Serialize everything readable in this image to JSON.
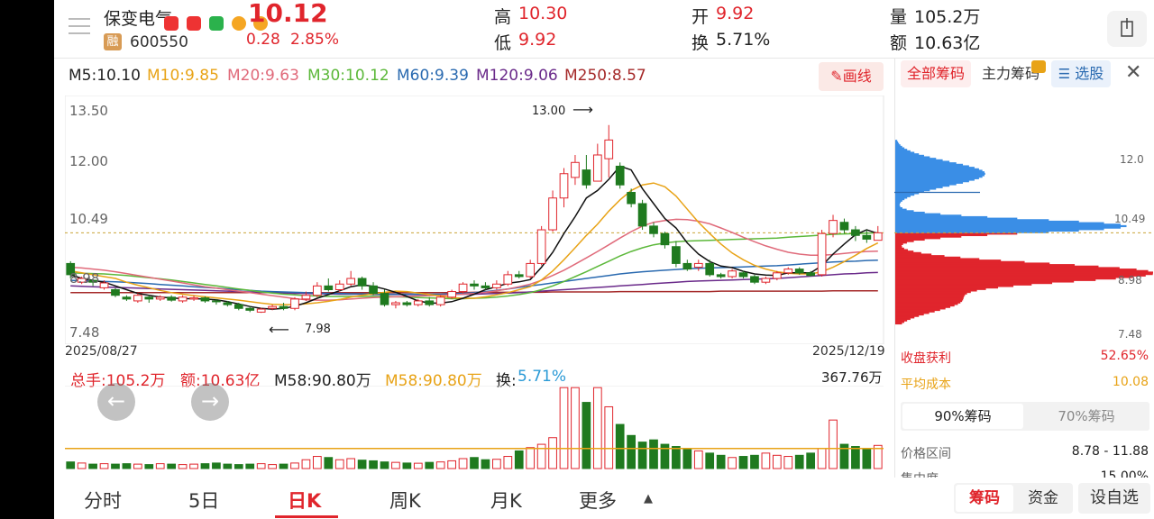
{
  "header": {
    "stock_name": "保变电气",
    "price": "10.12",
    "code": "600550",
    "rong_badge": "融",
    "change": "0.28",
    "change_pct": "2.85%",
    "high_label": "高",
    "high": "10.30",
    "low_label": "低",
    "low": "9.92",
    "open_label": "开",
    "open": "9.92",
    "turnover_label": "换",
    "turnover": "5.71%",
    "volume_label": "量",
    "volume": "105.2万",
    "amount_label": "额",
    "amount": "10.63亿"
  },
  "ma_bar": {
    "m5": "M5:10.10",
    "m10": "M10:9.85",
    "m20": "M20:9.63",
    "m30": "M30:10.12",
    "m60": "M60:9.39",
    "m120": "M120:9.06",
    "m250": "M250:8.57",
    "draw_button": "画线"
  },
  "chart": {
    "y_ticks": [
      "13.50",
      "12.00",
      "10.49",
      "8.98",
      "7.48"
    ],
    "date_start": "2025/08/27",
    "date_end": "2025/12/19",
    "high_annotation": "13.00",
    "low_annotation": "7.98"
  },
  "volume_bar": {
    "total": "总手:105.2万",
    "amount": "额:10.63亿",
    "m58a": "M58:90.80万",
    "m58b": "M58:90.80万",
    "turn_label": "换:",
    "turn_value": "5.71%",
    "max": "367.76万"
  },
  "chips": {
    "tab_all": "全部筹码",
    "tab_main": "主力筹码",
    "tab_select": "选股",
    "y_ticks": [
      "12.0",
      "10.49",
      "8.98",
      "7.48"
    ],
    "profit_label": "收盘获利",
    "profit_value": "52.65%",
    "avg_label": "平均成本",
    "avg_value": "10.08",
    "seg_90": "90%筹码",
    "seg_70": "70%筹码",
    "range_label": "价格区间",
    "range_value": "8.78 - 11.88",
    "conc_label": "集中度",
    "conc_value": "15.00%"
  },
  "bottom_tabs": [
    "分时",
    "5日",
    "日K",
    "周K",
    "月K",
    "更多"
  ],
  "bottom_right": {
    "chips_btn": "筹码",
    "fund_btn": "资金",
    "settings_btn": "设自选"
  },
  "chart_data": {
    "type": "candlestick",
    "x_range": [
      "2025/08/27",
      "2025/12/19"
    ],
    "ylim": [
      7.48,
      13.5
    ],
    "annotations": [
      {
        "label": "13.00"
      },
      {
        "label": "7.98"
      }
    ],
    "ohlc": [
      [
        9.3,
        9.0,
        9.36,
        8.9
      ],
      [
        8.8,
        8.9,
        8.95,
        8.75
      ],
      [
        8.85,
        8.8,
        8.9,
        8.7
      ],
      [
        8.65,
        8.78,
        8.85,
        8.6
      ],
      [
        8.6,
        8.45,
        8.65,
        8.4
      ],
      [
        8.4,
        8.35,
        8.45,
        8.3
      ],
      [
        8.3,
        8.45,
        8.5,
        8.25
      ],
      [
        8.4,
        8.35,
        8.45,
        8.25
      ],
      [
        8.35,
        8.4,
        8.45,
        8.3
      ],
      [
        8.4,
        8.32,
        8.45,
        8.28
      ],
      [
        8.3,
        8.4,
        8.45,
        8.25
      ],
      [
        8.35,
        8.38,
        8.45,
        8.3
      ],
      [
        8.38,
        8.3,
        8.42,
        8.25
      ],
      [
        8.3,
        8.28,
        8.35,
        8.2
      ],
      [
        8.25,
        8.2,
        8.3,
        8.15
      ],
      [
        8.2,
        8.1,
        8.25,
        8.05
      ],
      [
        8.1,
        8.05,
        8.15,
        8.0
      ],
      [
        8.0,
        8.08,
        8.12,
        7.98
      ],
      [
        8.1,
        8.15,
        8.2,
        8.05
      ],
      [
        8.15,
        8.1,
        8.25,
        8.05
      ],
      [
        8.1,
        8.35,
        8.4,
        8.05
      ],
      [
        8.35,
        8.45,
        8.55,
        8.3
      ],
      [
        8.45,
        8.7,
        8.8,
        8.4
      ],
      [
        8.7,
        8.6,
        8.9,
        8.55
      ],
      [
        8.6,
        8.75,
        8.85,
        8.55
      ],
      [
        8.75,
        8.9,
        9.1,
        8.7
      ],
      [
        8.9,
        8.7,
        8.95,
        8.6
      ],
      [
        8.7,
        8.5,
        8.8,
        8.45
      ],
      [
        8.5,
        8.2,
        8.6,
        8.15
      ],
      [
        8.2,
        8.25,
        8.3,
        8.1
      ],
      [
        8.25,
        8.2,
        8.3,
        8.15
      ],
      [
        8.2,
        8.3,
        8.35,
        8.15
      ],
      [
        8.3,
        8.2,
        8.4,
        8.15
      ],
      [
        8.2,
        8.4,
        8.45,
        8.15
      ],
      [
        8.4,
        8.55,
        8.6,
        8.35
      ],
      [
        8.55,
        8.75,
        8.8,
        8.5
      ],
      [
        8.75,
        8.7,
        8.85,
        8.6
      ],
      [
        8.7,
        8.65,
        8.8,
        8.6
      ],
      [
        8.65,
        8.75,
        8.85,
        8.6
      ],
      [
        8.75,
        9.0,
        9.1,
        8.7
      ],
      [
        9.0,
        8.95,
        9.1,
        8.9
      ],
      [
        8.95,
        9.3,
        9.4,
        8.9
      ],
      [
        9.3,
        10.2,
        10.3,
        9.25
      ],
      [
        10.2,
        11.05,
        11.25,
        10.15
      ],
      [
        11.05,
        11.7,
        11.85,
        10.8
      ],
      [
        11.6,
        12.0,
        12.2,
        11.4
      ],
      [
        11.8,
        11.4,
        12.2,
        11.3
      ],
      [
        11.5,
        12.2,
        12.5,
        11.5
      ],
      [
        12.1,
        12.6,
        13.0,
        11.6
      ],
      [
        11.9,
        11.4,
        12.0,
        11.3
      ],
      [
        11.2,
        10.9,
        11.3,
        10.8
      ],
      [
        10.9,
        10.3,
        11.0,
        10.2
      ],
      [
        10.3,
        10.1,
        10.4,
        10.0
      ],
      [
        10.1,
        9.8,
        10.15,
        9.7
      ],
      [
        9.75,
        9.3,
        9.9,
        9.2
      ],
      [
        9.3,
        9.15,
        9.4,
        9.1
      ],
      [
        9.2,
        9.3,
        9.4,
        9.1
      ],
      [
        9.3,
        9.0,
        9.4,
        8.95
      ],
      [
        9.0,
        8.95,
        9.05,
        8.9
      ],
      [
        8.95,
        9.1,
        9.15,
        8.9
      ],
      [
        9.05,
        8.95,
        9.1,
        8.9
      ],
      [
        8.95,
        8.8,
        9.0,
        8.75
      ],
      [
        8.8,
        8.9,
        8.95,
        8.75
      ],
      [
        8.9,
        9.05,
        9.1,
        8.85
      ],
      [
        9.05,
        9.15,
        9.2,
        9.0
      ],
      [
        9.15,
        9.05,
        9.2,
        9.0
      ],
      [
        9.05,
        8.98,
        9.1,
        8.95
      ],
      [
        9.0,
        10.1,
        10.2,
        8.95
      ],
      [
        10.1,
        10.45,
        10.6,
        10.0
      ],
      [
        10.4,
        10.2,
        10.5,
        10.1
      ],
      [
        10.2,
        10.05,
        10.3,
        9.9
      ],
      [
        10.05,
        9.95,
        10.2,
        9.85
      ],
      [
        9.92,
        10.12,
        10.3,
        9.92
      ]
    ],
    "series": [
      {
        "name": "M5",
        "last": 10.1
      },
      {
        "name": "M10",
        "last": 9.85
      },
      {
        "name": "M20",
        "last": 9.63
      },
      {
        "name": "M30",
        "last": 10.12
      },
      {
        "name": "M60",
        "last": 9.39
      },
      {
        "name": "M120",
        "last": 9.06
      },
      {
        "name": "M250",
        "last": 8.57
      }
    ],
    "ma5": [
      9.0,
      8.9,
      8.85,
      8.8,
      8.7,
      8.6,
      8.5,
      8.45,
      8.4,
      8.38,
      8.36,
      8.36,
      8.35,
      8.33,
      8.28,
      8.22,
      8.15,
      8.1,
      8.08,
      8.1,
      8.16,
      8.25,
      8.37,
      8.47,
      8.57,
      8.68,
      8.73,
      8.69,
      8.62,
      8.53,
      8.42,
      8.3,
      8.24,
      8.24,
      8.28,
      8.37,
      8.48,
      8.6,
      8.68,
      8.77,
      8.81,
      8.87,
      9.2,
      9.6,
      10.1,
      10.55,
      11.05,
      11.25,
      11.55,
      11.9,
      11.8,
      11.3,
      10.9,
      10.5,
      10.25,
      9.85,
      9.55,
      9.35,
      9.23,
      9.19,
      9.09,
      9.02,
      8.99,
      8.98,
      9.05,
      9.05,
      9.05,
      9.24,
      9.55,
      9.82,
      10.07,
      10.2,
      10.1
    ],
    "ma10": [
      9.1,
      9.05,
      9.0,
      8.95,
      8.9,
      8.8,
      8.72,
      8.65,
      8.58,
      8.52,
      8.48,
      8.44,
      8.41,
      8.38,
      8.35,
      8.32,
      8.28,
      8.24,
      8.21,
      8.2,
      8.2,
      8.22,
      8.25,
      8.29,
      8.34,
      8.4,
      8.45,
      8.49,
      8.53,
      8.56,
      8.55,
      8.51,
      8.47,
      8.43,
      8.39,
      8.37,
      8.37,
      8.41,
      8.46,
      8.52,
      8.6,
      8.68,
      8.86,
      9.1,
      9.4,
      9.72,
      10.05,
      10.35,
      10.7,
      11.0,
      11.25,
      11.4,
      11.45,
      11.35,
      11.1,
      10.75,
      10.4,
      10.1,
      9.82,
      9.58,
      9.4,
      9.25,
      9.15,
      9.08,
      9.04,
      9.02,
      9.02,
      9.08,
      9.2,
      9.35,
      9.52,
      9.7,
      9.85
    ],
    "ma20": [
      9.2,
      9.18,
      9.15,
      9.12,
      9.08,
      9.03,
      8.98,
      8.93,
      8.88,
      8.83,
      8.78,
      8.73,
      8.68,
      8.64,
      8.6,
      8.56,
      8.52,
      8.48,
      8.44,
      8.4,
      8.36,
      8.33,
      8.32,
      8.32,
      8.33,
      8.35,
      8.37,
      8.39,
      8.4,
      8.41,
      8.42,
      8.43,
      8.44,
      8.45,
      8.46,
      8.48,
      8.5,
      8.53,
      8.57,
      8.62,
      8.68,
      8.75,
      8.85,
      8.98,
      9.12,
      9.28,
      9.45,
      9.62,
      9.8,
      9.98,
      10.15,
      10.3,
      10.4,
      10.45,
      10.48,
      10.47,
      10.43,
      10.36,
      10.25,
      10.13,
      10.0,
      9.88,
      9.77,
      9.68,
      9.6,
      9.55,
      9.52,
      9.52,
      9.54,
      9.57,
      9.6,
      9.62,
      9.63
    ],
    "ma30": [
      9.05,
      9.04,
      9.03,
      9.02,
      9.0,
      8.98,
      8.95,
      8.92,
      8.89,
      8.86,
      8.82,
      8.78,
      8.74,
      8.7,
      8.66,
      8.62,
      8.58,
      8.54,
      8.51,
      8.48,
      8.46,
      8.44,
      8.43,
      8.42,
      8.42,
      8.42,
      8.42,
      8.42,
      8.42,
      8.41,
      8.4,
      8.39,
      8.38,
      8.37,
      8.36,
      8.36,
      8.37,
      8.38,
      8.4,
      8.43,
      8.47,
      8.52,
      8.6,
      8.7,
      8.82,
      8.95,
      9.08,
      9.22,
      9.36,
      9.5,
      9.62,
      9.72,
      9.8,
      9.85,
      9.88,
      9.9,
      9.91,
      9.92,
      9.93,
      9.94,
      9.95,
      9.96,
      9.97,
      9.98,
      10.0,
      10.02,
      10.04,
      10.06,
      10.08,
      10.09,
      10.1,
      10.11,
      10.12
    ],
    "ma60": [
      8.85,
      8.84,
      8.83,
      8.82,
      8.81,
      8.8,
      8.78,
      8.76,
      8.74,
      8.72,
      8.7,
      8.68,
      8.66,
      8.64,
      8.62,
      8.6,
      8.58,
      8.56,
      8.55,
      8.54,
      8.53,
      8.52,
      8.51,
      8.5,
      8.5,
      8.49,
      8.49,
      8.48,
      8.48,
      8.48,
      8.48,
      8.48,
      8.48,
      8.48,
      8.49,
      8.5,
      8.52,
      8.55,
      8.58,
      8.62,
      8.66,
      8.7,
      8.74,
      8.78,
      8.82,
      8.86,
      8.9,
      8.94,
      8.98,
      9.02,
      9.05,
      9.08,
      9.1,
      9.12,
      9.14,
      9.16,
      9.17,
      9.18,
      9.19,
      9.2,
      9.21,
      9.22,
      9.23,
      9.24,
      9.26,
      9.28,
      9.3,
      9.32,
      9.34,
      9.35,
      9.36,
      9.38,
      9.39
    ],
    "ma120": [
      8.7,
      8.69,
      8.68,
      8.67,
      8.66,
      8.65,
      8.64,
      8.63,
      8.62,
      8.61,
      8.6,
      8.59,
      8.58,
      8.57,
      8.56,
      8.55,
      8.54,
      8.53,
      8.52,
      8.51,
      8.5,
      8.5,
      8.49,
      8.49,
      8.48,
      8.48,
      8.48,
      8.47,
      8.47,
      8.47,
      8.47,
      8.47,
      8.47,
      8.47,
      8.47,
      8.48,
      8.48,
      8.49,
      8.5,
      8.51,
      8.52,
      8.54,
      8.56,
      8.58,
      8.6,
      8.62,
      8.64,
      8.66,
      8.68,
      8.7,
      8.72,
      8.74,
      8.76,
      8.78,
      8.8,
      8.82,
      8.83,
      8.84,
      8.85,
      8.86,
      8.87,
      8.88,
      8.89,
      8.9,
      8.92,
      8.94,
      8.96,
      8.98,
      9.0,
      9.02,
      9.03,
      9.05,
      9.06
    ],
    "ma250": [
      8.52,
      8.52,
      8.52,
      8.52,
      8.52,
      8.52,
      8.52,
      8.52,
      8.52,
      8.52,
      8.52,
      8.52,
      8.52,
      8.52,
      8.52,
      8.52,
      8.52,
      8.52,
      8.52,
      8.52,
      8.52,
      8.52,
      8.52,
      8.52,
      8.52,
      8.52,
      8.52,
      8.52,
      8.52,
      8.52,
      8.52,
      8.52,
      8.52,
      8.52,
      8.52,
      8.52,
      8.53,
      8.53,
      8.53,
      8.53,
      8.53,
      8.53,
      8.53,
      8.54,
      8.54,
      8.54,
      8.54,
      8.54,
      8.54,
      8.55,
      8.55,
      8.55,
      8.55,
      8.55,
      8.55,
      8.55,
      8.55,
      8.55,
      8.56,
      8.56,
      8.56,
      8.56,
      8.56,
      8.56,
      8.56,
      8.56,
      8.56,
      8.56,
      8.57,
      8.57,
      8.57,
      8.57,
      8.57
    ],
    "volume_wan": [
      30,
      25,
      20,
      22,
      20,
      22,
      20,
      18,
      22,
      20,
      18,
      20,
      22,
      25,
      20,
      18,
      20,
      22,
      18,
      20,
      25,
      40,
      55,
      50,
      40,
      45,
      38,
      35,
      30,
      28,
      25,
      24,
      28,
      30,
      35,
      45,
      50,
      40,
      42,
      55,
      80,
      95,
      110,
      140,
      367,
      367,
      300,
      367,
      280,
      200,
      150,
      120,
      130,
      110,
      100,
      90,
      80,
      70,
      60,
      50,
      55,
      60,
      70,
      60,
      55,
      60,
      70,
      90,
      220,
      110,
      100,
      90,
      105
    ],
    "volume_ma": 90.8,
    "chip_distribution": {
      "profit_pct": 52.65,
      "avg_cost": 10.08,
      "range": [
        8.78,
        11.88
      ],
      "concentration_pct": 15.0
    }
  }
}
